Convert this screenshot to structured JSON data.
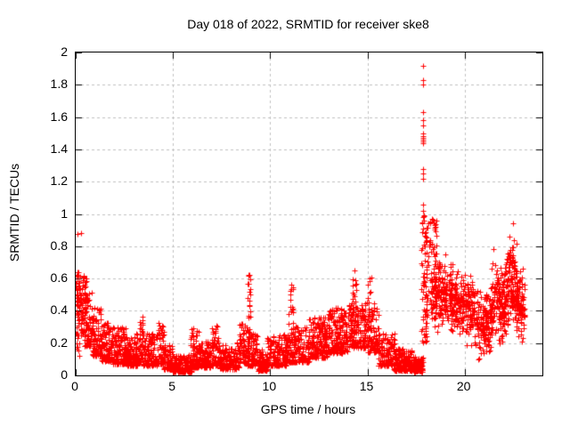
{
  "chart_data": {
    "type": "scatter",
    "title": "Day 018 of 2022, SRMTID for receiver ske8",
    "xlabel": "GPS time / hours",
    "ylabel": "SRMTID / TECUs",
    "xlim": [
      0,
      24
    ],
    "ylim": [
      0,
      2
    ],
    "xticks": [
      0,
      5,
      10,
      15,
      20
    ],
    "ytick_values": [
      0,
      0.2,
      0.4,
      0.6,
      0.8,
      1,
      1.2,
      1.4,
      1.6,
      1.8,
      2
    ],
    "ytick_labels": [
      "0",
      "0.2",
      "0.4",
      "0.6",
      "0.8",
      "1",
      "1.2",
      "1.4",
      "1.6",
      "1.8",
      "2"
    ],
    "grid": true,
    "grid_style": "dashed",
    "legend": "none",
    "marker": "plus",
    "marker_color": "#ff0000",
    "grid_color": "#c0c0c0",
    "axis_color": "#000000",
    "series": [
      {
        "name": "SRMTID",
        "point_count_approx": 4200,
        "data_time_range_hours": [
          0,
          23.1
        ],
        "bin_format": [
          "t_start_hour",
          "t_end_hour",
          "y_min_TECU",
          "y_max_TECU",
          "count",
          "distribution(s=skew-low,u=uniform,m=mid-weighted)"
        ],
        "density_bins": [
          [
            0.0,
            0.18,
            0.1,
            0.66,
            45,
            "u"
          ],
          [
            0.15,
            0.55,
            0.25,
            0.62,
            70,
            "u"
          ],
          [
            0.45,
            0.9,
            0.18,
            0.52,
            80,
            "s"
          ],
          [
            0.85,
            1.35,
            0.12,
            0.42,
            85,
            "s"
          ],
          [
            1.3,
            1.9,
            0.09,
            0.33,
            110,
            "s"
          ],
          [
            1.9,
            2.6,
            0.07,
            0.3,
            130,
            "s"
          ],
          [
            2.6,
            3.15,
            0.06,
            0.24,
            100,
            "s"
          ],
          [
            3.1,
            3.45,
            0.08,
            0.37,
            60,
            "s"
          ],
          [
            3.45,
            4.2,
            0.06,
            0.26,
            120,
            "s"
          ],
          [
            4.2,
            4.55,
            0.07,
            0.33,
            55,
            "s"
          ],
          [
            4.55,
            5.0,
            0.04,
            0.19,
            85,
            "s"
          ],
          [
            5.0,
            5.95,
            0.02,
            0.13,
            150,
            "s"
          ],
          [
            5.9,
            6.35,
            0.05,
            0.31,
            70,
            "s"
          ],
          [
            6.3,
            7.05,
            0.05,
            0.22,
            115,
            "s"
          ],
          [
            7.0,
            7.4,
            0.06,
            0.31,
            60,
            "s"
          ],
          [
            7.35,
            8.4,
            0.04,
            0.21,
            150,
            "s"
          ],
          [
            8.4,
            8.8,
            0.07,
            0.34,
            60,
            "s"
          ],
          [
            8.82,
            9.0,
            0.22,
            0.63,
            22,
            "u"
          ],
          [
            8.8,
            9.4,
            0.06,
            0.27,
            90,
            "s"
          ],
          [
            9.35,
            9.85,
            0.03,
            0.16,
            90,
            "s"
          ],
          [
            9.8,
            10.85,
            0.06,
            0.26,
            150,
            "s"
          ],
          [
            10.95,
            11.2,
            0.2,
            0.57,
            22,
            "u"
          ],
          [
            10.8,
            12.0,
            0.08,
            0.31,
            170,
            "s"
          ],
          [
            12.0,
            13.0,
            0.11,
            0.36,
            170,
            "s"
          ],
          [
            13.0,
            14.0,
            0.14,
            0.43,
            180,
            "s"
          ],
          [
            14.2,
            14.45,
            0.28,
            0.65,
            22,
            "u"
          ],
          [
            14.0,
            15.0,
            0.17,
            0.46,
            160,
            "s"
          ],
          [
            15.0,
            15.25,
            0.24,
            0.62,
            18,
            "u"
          ],
          [
            15.0,
            15.6,
            0.14,
            0.45,
            90,
            "s"
          ],
          [
            15.55,
            16.4,
            0.06,
            0.26,
            130,
            "s"
          ],
          [
            16.35,
            17.3,
            0.03,
            0.17,
            170,
            "s"
          ],
          [
            17.25,
            17.85,
            0.02,
            0.12,
            120,
            "s"
          ],
          [
            17.78,
            18.1,
            0.2,
            1.0,
            70,
            "u"
          ],
          [
            18.05,
            18.55,
            0.35,
            0.97,
            70,
            "u"
          ],
          [
            18.3,
            19.0,
            0.25,
            0.75,
            110,
            "m"
          ],
          [
            19.0,
            19.7,
            0.2,
            0.72,
            120,
            "m"
          ],
          [
            19.7,
            20.5,
            0.17,
            0.66,
            130,
            "m"
          ],
          [
            20.5,
            21.4,
            0.08,
            0.55,
            150,
            "m"
          ],
          [
            21.35,
            22.15,
            0.18,
            0.72,
            150,
            "m"
          ],
          [
            22.1,
            22.7,
            0.22,
            0.85,
            130,
            "m"
          ],
          [
            22.65,
            23.1,
            0.18,
            0.66,
            90,
            "m"
          ]
        ],
        "notable_points": [
          [
            0.07,
            0.875
          ],
          [
            0.28,
            0.88
          ],
          [
            8.9,
            0.62
          ],
          [
            8.88,
            0.57
          ],
          [
            8.92,
            0.52
          ],
          [
            11.08,
            0.56
          ],
          [
            14.33,
            0.65
          ],
          [
            15.1,
            0.6
          ],
          [
            17.85,
            1.92
          ],
          [
            17.86,
            1.83
          ],
          [
            17.84,
            1.8
          ],
          [
            17.87,
            1.63
          ],
          [
            17.85,
            1.58
          ],
          [
            17.86,
            1.55
          ],
          [
            17.84,
            1.5
          ],
          [
            17.85,
            1.48
          ],
          [
            17.87,
            1.47
          ],
          [
            17.86,
            1.46
          ],
          [
            17.85,
            1.45
          ],
          [
            17.88,
            1.44
          ],
          [
            17.86,
            1.28
          ],
          [
            17.84,
            1.25
          ],
          [
            17.87,
            1.22
          ],
          [
            17.85,
            1.06
          ],
          [
            17.86,
            1.02
          ],
          [
            17.84,
            0.98
          ],
          [
            17.83,
            0.95
          ],
          [
            18.3,
            0.97
          ],
          [
            18.45,
            0.93
          ],
          [
            19.0,
            0.75
          ],
          [
            21.5,
            0.78
          ],
          [
            22.48,
            0.94
          ],
          [
            22.3,
            0.86
          ],
          [
            22.55,
            0.84
          ],
          [
            23.0,
            0.66
          ]
        ]
      }
    ]
  }
}
